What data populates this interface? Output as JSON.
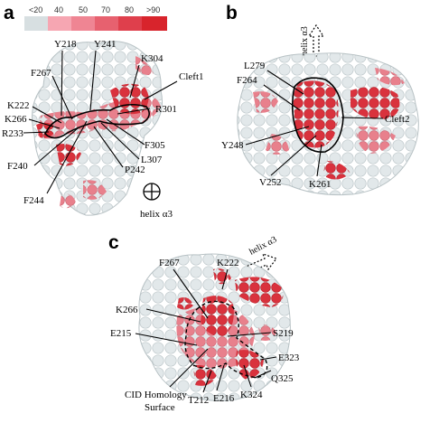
{
  "legend": {
    "labels": [
      "<20",
      "40",
      "50",
      "70",
      "80",
      ">90"
    ],
    "colors": [
      "#d7dfe1",
      "#f6a6b2",
      "#ef8593",
      "#e7616f",
      "#df3f4c",
      "#d8242c"
    ]
  },
  "panels": {
    "a": {
      "letter": "a",
      "labels": {
        "y218": "Y218",
        "y241": "Y241",
        "k304": "K304",
        "cleft1": "Cleft1",
        "f267": "F267",
        "k222": "K222",
        "k266": "K266",
        "r233": "R233",
        "r301": "R301",
        "f305": "F305",
        "l307": "L307",
        "p242": "P242",
        "f240": "F240",
        "f244": "F244",
        "helix": "helix α3"
      }
    },
    "b": {
      "letter": "b",
      "labels": {
        "helix": "helix α3",
        "l279": "L279",
        "f264": "F264",
        "cleft2": "Cleft2",
        "y248": "Y248",
        "v252": "V252",
        "k261": "K261"
      }
    },
    "c": {
      "letter": "c",
      "labels": {
        "helix": "helix α3",
        "f267": "F267",
        "k222": "K222",
        "k266": "K266",
        "e215": "E215",
        "s219": "S219",
        "e323": "E323",
        "q325": "Q325",
        "cid1": "CID Homology",
        "cid2": "Surface",
        "t212": "T212",
        "e216": "E216",
        "k324": "K324"
      }
    }
  }
}
